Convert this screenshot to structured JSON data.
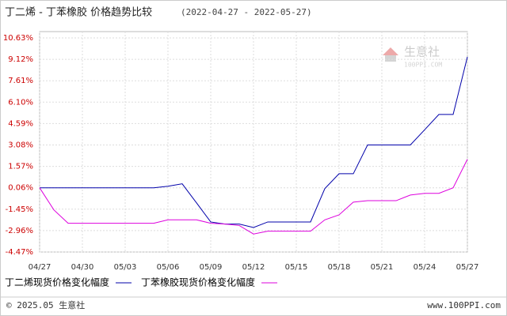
{
  "chart_data": {
    "type": "line",
    "title": "丁二烯 - 丁苯橡胶 价格趋势比较",
    "subtitle": "(2022-04-27 - 2022-05-27)",
    "categories": [
      "04/27",
      null,
      null,
      "04/30",
      null,
      null,
      "05/03",
      null,
      null,
      "05/06",
      null,
      null,
      "05/09",
      null,
      null,
      "05/12",
      null,
      null,
      "05/15",
      null,
      null,
      "05/18",
      null,
      null,
      "05/21",
      null,
      null,
      "05/24",
      null,
      null,
      "05/27"
    ],
    "series": [
      {
        "name": "丁二烯现货价格变化幅度",
        "color": "#0000aa",
        "values": [
          0.06,
          0.06,
          0.06,
          0.06,
          0.06,
          0.06,
          0.06,
          0.06,
          0.06,
          0.17,
          0.34,
          -1.0,
          -2.35,
          -2.5,
          -2.5,
          -2.74,
          -2.35,
          -2.35,
          -2.35,
          -2.35,
          0.0,
          1.05,
          1.05,
          3.08,
          3.08,
          3.08,
          3.08,
          4.15,
          5.23,
          5.23,
          9.29
        ]
      },
      {
        "name": "丁苯橡胶现货价格变化幅度",
        "color": "#dd00dd",
        "values": [
          0.06,
          -1.5,
          -2.44,
          -2.44,
          -2.44,
          -2.44,
          -2.44,
          -2.44,
          -2.44,
          -2.2,
          -2.2,
          -2.2,
          -2.44,
          -2.5,
          -2.6,
          -3.2,
          -3.0,
          -3.0,
          -3.0,
          -3.0,
          -2.2,
          -1.85,
          -0.95,
          -0.85,
          -0.85,
          -0.85,
          -0.45,
          -0.33,
          -0.33,
          0.06,
          2.07
        ]
      }
    ],
    "ylim": [
      -4.47,
      10.63
    ],
    "yticks": [
      {
        "value": 10.63,
        "label": "10.63%"
      },
      {
        "value": 9.12,
        "label": "9.12%"
      },
      {
        "value": 7.61,
        "label": "7.61%"
      },
      {
        "value": 6.1,
        "label": "6.10%"
      },
      {
        "value": 4.59,
        "label": "4.59%"
      },
      {
        "value": 3.08,
        "label": "3.08%"
      },
      {
        "value": 1.57,
        "label": "1.57%"
      },
      {
        "value": 0.06,
        "label": "0.06%"
      },
      {
        "value": -1.45,
        "label": "-1.45%"
      },
      {
        "value": -2.96,
        "label": "-2.96%"
      },
      {
        "value": -4.47,
        "label": "-4.47%"
      }
    ],
    "grid": true,
    "watermark": {
      "name": "生意社",
      "site": "100PPI.COM"
    },
    "footer": {
      "copyright": "© 2025.05 生意社",
      "url": "www.100PPI.com"
    }
  }
}
